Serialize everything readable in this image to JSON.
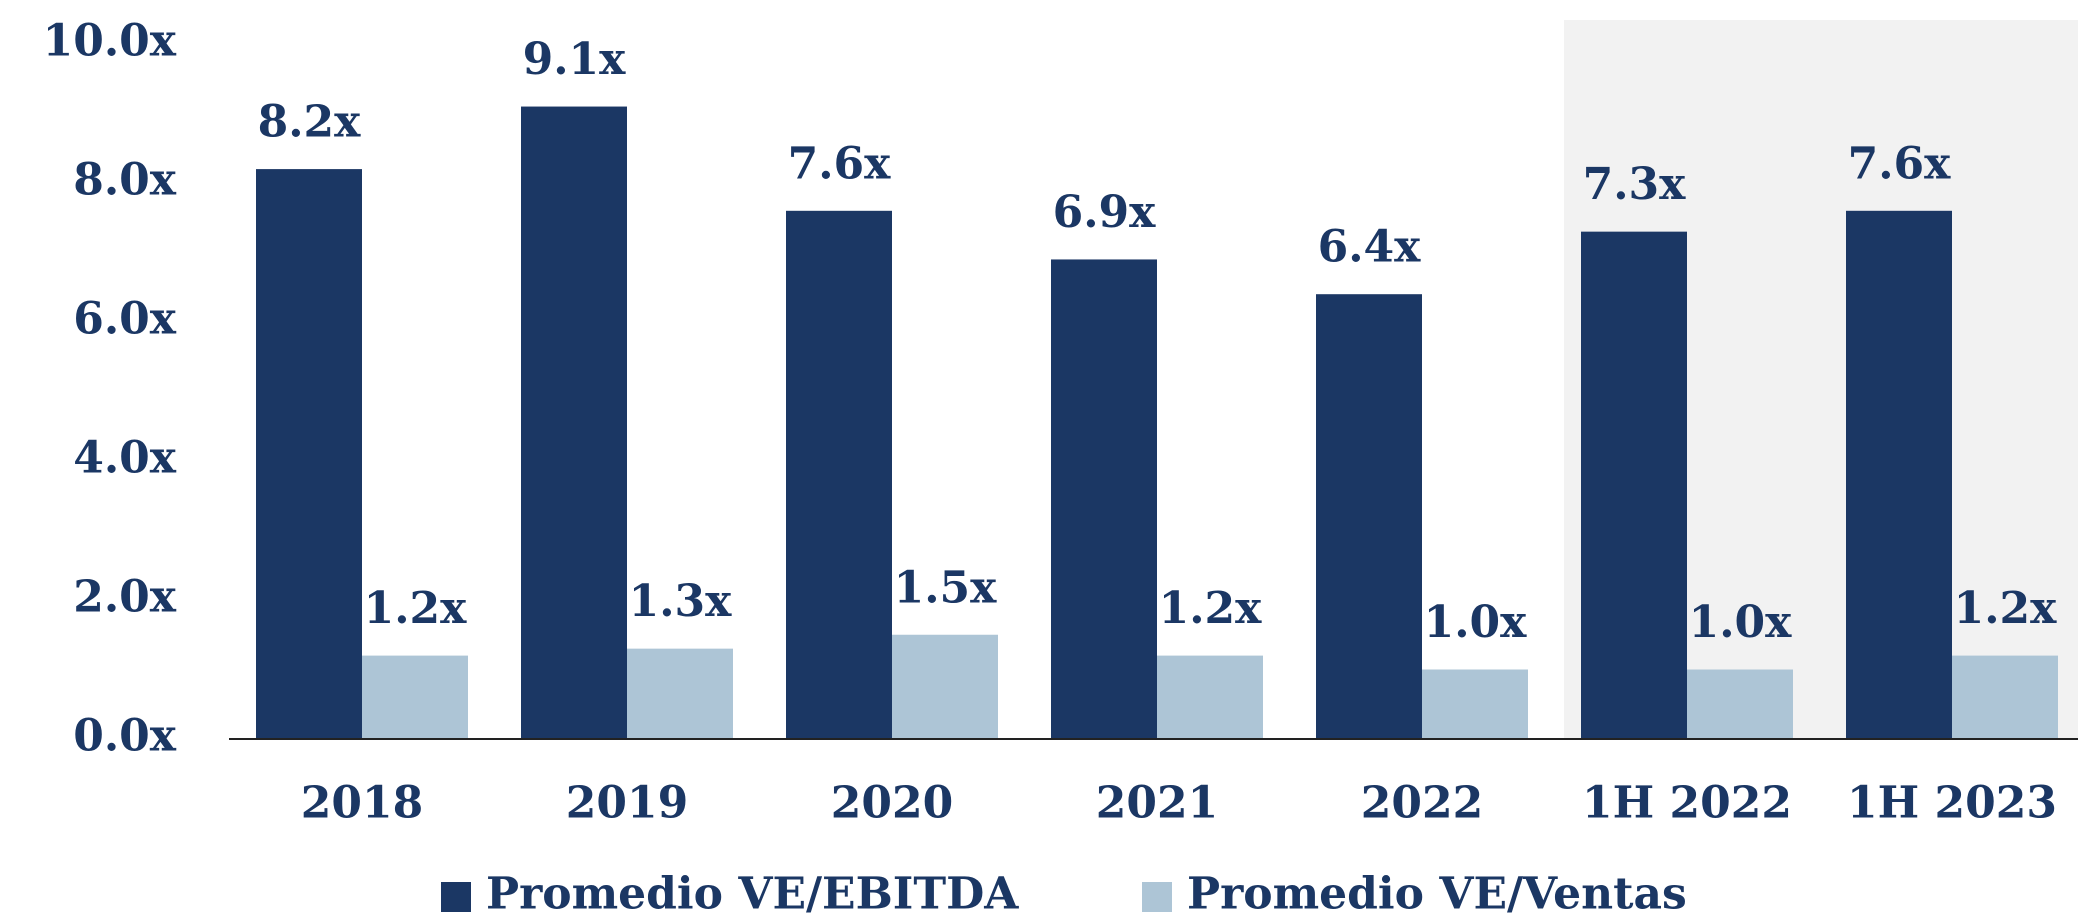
{
  "chart_data": {
    "type": "bar",
    "categories": [
      "2018",
      "2019",
      "2020",
      "2021",
      "2022",
      "1H 2022",
      "1H 2023"
    ],
    "series": [
      {
        "name": "Promedio VE/EBITDA",
        "color": "#1b3764",
        "values": [
          8.2,
          9.1,
          7.6,
          6.9,
          6.4,
          7.3,
          7.6
        ],
        "value_labels": [
          "8.2x",
          "9.1x",
          "7.6x",
          "6.9x",
          "6.4x",
          "7.3x",
          "7.6x"
        ]
      },
      {
        "name": "Promedio VE/Ventas",
        "color": "#adc5d6",
        "values": [
          1.2,
          1.3,
          1.5,
          1.2,
          1.0,
          1.0,
          1.2
        ],
        "value_labels": [
          "1.2x",
          "1.3x",
          "1.5x",
          "1.2x",
          "1.0x",
          "1.0x",
          "1.2x"
        ]
      }
    ],
    "ylim": [
      0,
      10
    ],
    "yticks": [
      {
        "value": 0,
        "label": "0.0x"
      },
      {
        "value": 2,
        "label": "2.0x"
      },
      {
        "value": 4,
        "label": "4.0x"
      },
      {
        "value": 6,
        "label": "6.0x"
      },
      {
        "value": 8,
        "label": "8.0x"
      },
      {
        "value": 10,
        "label": "10.0x"
      }
    ],
    "grid": false,
    "legend": "bottom"
  }
}
